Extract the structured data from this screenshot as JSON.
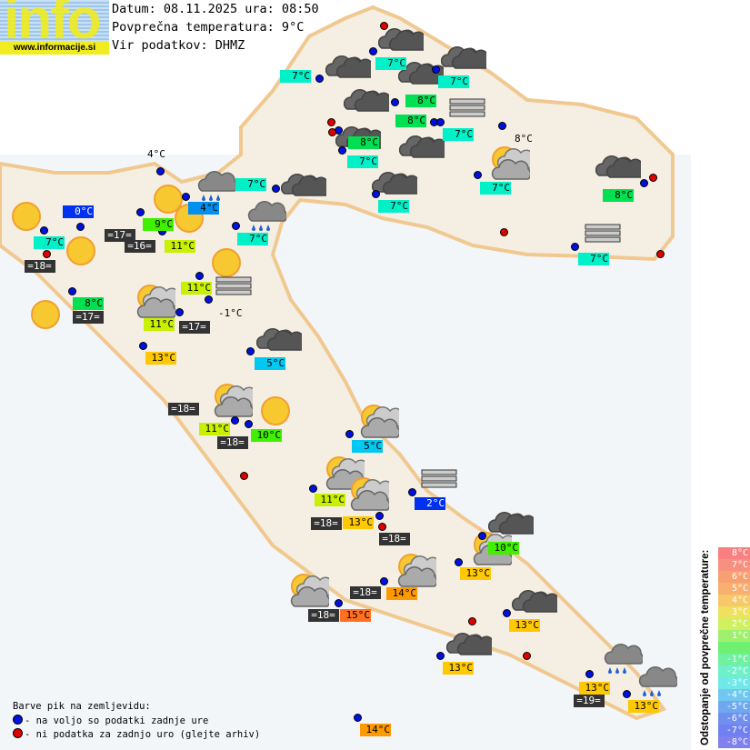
{
  "logo": {
    "word": "info",
    "url": "www.informacije.si"
  },
  "header": {
    "date_line": "Datum: 08.11.2025 ura: 08:50",
    "avg_line": "Povprečna temperatura: 9°C",
    "source_line": "Vir podatkov: DHMZ"
  },
  "colors": {
    "ok_dot": "#0010e0",
    "missing_dot": "#e00000",
    "cyan": "#00f0c8",
    "green": "#00e050",
    "lime": "#40f000",
    "yellowgreen": "#c8f000",
    "yellow": "#ffc800",
    "orange": "#ff9900",
    "orangered": "#ff7020",
    "lightblue": "#00c8f0",
    "blue": "#0030f0",
    "midblue": "#0090f0",
    "dark": "#333333"
  },
  "labels": [
    {
      "text": "7°C",
      "color": "#00f0c8"
    },
    {
      "text": "7°C",
      "color": "#00f0c8"
    },
    {
      "text": "7°C",
      "color": "#00f0c8"
    },
    {
      "text": "8°C",
      "color": "#00e050"
    },
    {
      "text": "8°C",
      "color": "#00e050"
    },
    {
      "text": "7°C",
      "color": "#00f0c8"
    },
    {
      "text": "8°C",
      "color": "#00e050"
    },
    {
      "text": "7°C",
      "color": "#00f0c8"
    },
    {
      "text": "7°C",
      "color": "#00f0c8"
    },
    {
      "text": "7°C",
      "color": "#00f0c8"
    },
    {
      "text": "8°C",
      "color": "#00e050"
    },
    {
      "text": "7°C",
      "color": "#00f0c8"
    },
    {
      "text": "8°C",
      "color": "plain"
    },
    {
      "text": "7°C",
      "color": "#00f0c8"
    },
    {
      "text": "7°C",
      "color": "#00f0c8"
    },
    {
      "text": "0°C",
      "color": "#0030f0"
    },
    {
      "text": "7°C",
      "color": "#00f0c8"
    },
    {
      "text": "=18=",
      "color": "dark"
    },
    {
      "text": "=17=",
      "color": "dark"
    },
    {
      "text": "=16=",
      "color": "dark"
    },
    {
      "text": "9°C",
      "color": "#40f000"
    },
    {
      "text": "4°C",
      "color": "#0090f0"
    },
    {
      "text": "11°C",
      "color": "#c8f000"
    },
    {
      "text": "4°C",
      "color": "plain"
    },
    {
      "text": "8°C",
      "color": "#00e050"
    },
    {
      "text": "=17=",
      "color": "dark"
    },
    {
      "text": "11°C",
      "color": "#c8f000"
    },
    {
      "text": "11°C",
      "color": "#c8f000"
    },
    {
      "text": "=17=",
      "color": "dark"
    },
    {
      "text": "-1°C",
      "color": "plain"
    },
    {
      "text": "13°C",
      "color": "#ffc800"
    },
    {
      "text": "5°C",
      "color": "#00c8f0"
    },
    {
      "text": "=18=",
      "color": "dark"
    },
    {
      "text": "11°C",
      "color": "#c8f000"
    },
    {
      "text": "10°C",
      "color": "#40f000"
    },
    {
      "text": "=18=",
      "color": "dark"
    },
    {
      "text": "5°C",
      "color": "#00c8f0"
    },
    {
      "text": "11°C",
      "color": "#c8f000"
    },
    {
      "text": "2°C",
      "color": "#0030f0"
    },
    {
      "text": "=18=",
      "color": "dark"
    },
    {
      "text": "13°C",
      "color": "#ffc800"
    },
    {
      "text": "=18=",
      "color": "dark"
    },
    {
      "text": "10°C",
      "color": "#40f000"
    },
    {
      "text": "13°C",
      "color": "#ffc800"
    },
    {
      "text": "=18=",
      "color": "dark"
    },
    {
      "text": "14°C",
      "color": "#ff9900"
    },
    {
      "text": "=18=",
      "color": "dark"
    },
    {
      "text": "15°C",
      "color": "#ff7020"
    },
    {
      "text": "13°C",
      "color": "#ffc800"
    },
    {
      "text": "13°C",
      "color": "#ffc800"
    },
    {
      "text": "13°C",
      "color": "#ffc800"
    },
    {
      "text": "=19=",
      "color": "dark"
    },
    {
      "text": "13°C",
      "color": "#ffc800"
    },
    {
      "text": "14°C",
      "color": "#ff9900"
    }
  ],
  "stations": [
    "ok",
    "ok",
    "ok",
    "ok",
    "ok",
    "ok",
    "ok",
    "ok",
    "ok",
    "ok",
    "ok",
    "ok",
    "ok",
    "ok",
    "ok",
    "ok",
    "ok",
    "ok",
    "ok",
    "ok",
    "ok",
    "ok",
    "ok",
    "ok",
    "ok",
    "ok",
    "ok",
    "ok",
    "ok",
    "ok",
    "ok",
    "ok",
    "ok",
    "ok",
    "ok",
    "ok",
    "ok",
    "ok",
    "ok",
    "ok",
    "ok",
    "ok",
    "missing",
    "missing",
    "missing",
    "missing",
    "missing",
    "missing",
    "missing",
    "missing",
    "missing",
    "missing",
    "missing"
  ],
  "weather_icons": [
    "sun",
    "sun",
    "sun",
    "sun",
    "sun",
    "sun",
    "sun",
    "partly-cloudy",
    "partly-cloudy",
    "partly-cloudy",
    "partly-cloudy",
    "partly-cloudy",
    "partly-cloudy",
    "partly-cloudy",
    "partly-cloudy",
    "partly-cloudy",
    "cloud",
    "cloud",
    "cloud",
    "cloud",
    "cloud",
    "cloud",
    "cloud",
    "cloud",
    "cloud",
    "cloud",
    "cloud",
    "cloud",
    "cloud",
    "cloud",
    "rain",
    "rain",
    "rain",
    "rain",
    "fog",
    "fog",
    "fog",
    "fog"
  ],
  "legend": {
    "title": "Barve pik na zemljevidu:",
    "ok": "- na voljo so podatki zadnje ure",
    "missing": "- ni podatka za zadnjo uro (glejte arhiv)"
  },
  "scale": {
    "title": "Odstopanje od povprečne temperature:",
    "steps": [
      {
        "label": "8°C",
        "color": "#f88080"
      },
      {
        "label": "7°C",
        "color": "#f89080"
      },
      {
        "label": "6°C",
        "color": "#f8a070"
      },
      {
        "label": "5°C",
        "color": "#f8b070"
      },
      {
        "label": "4°C",
        "color": "#f8c868"
      },
      {
        "label": "3°C",
        "color": "#f0e060"
      },
      {
        "label": "2°C",
        "color": "#d0f060"
      },
      {
        "label": "1°C",
        "color": "#a0f070"
      },
      {
        "label": "",
        "color": "#70f070"
      },
      {
        "label": "-1°C",
        "color": "#70f0a0"
      },
      {
        "label": "-2°C",
        "color": "#70f0c8"
      },
      {
        "label": "-3°C",
        "color": "#70e8e8"
      },
      {
        "label": "-4°C",
        "color": "#70c8f0"
      },
      {
        "label": "-5°C",
        "color": "#70a8f0"
      },
      {
        "label": "-6°C",
        "color": "#7090f0"
      },
      {
        "label": "-7°C",
        "color": "#7080f0"
      },
      {
        "label": "-8°C",
        "color": "#8080f0"
      }
    ]
  }
}
